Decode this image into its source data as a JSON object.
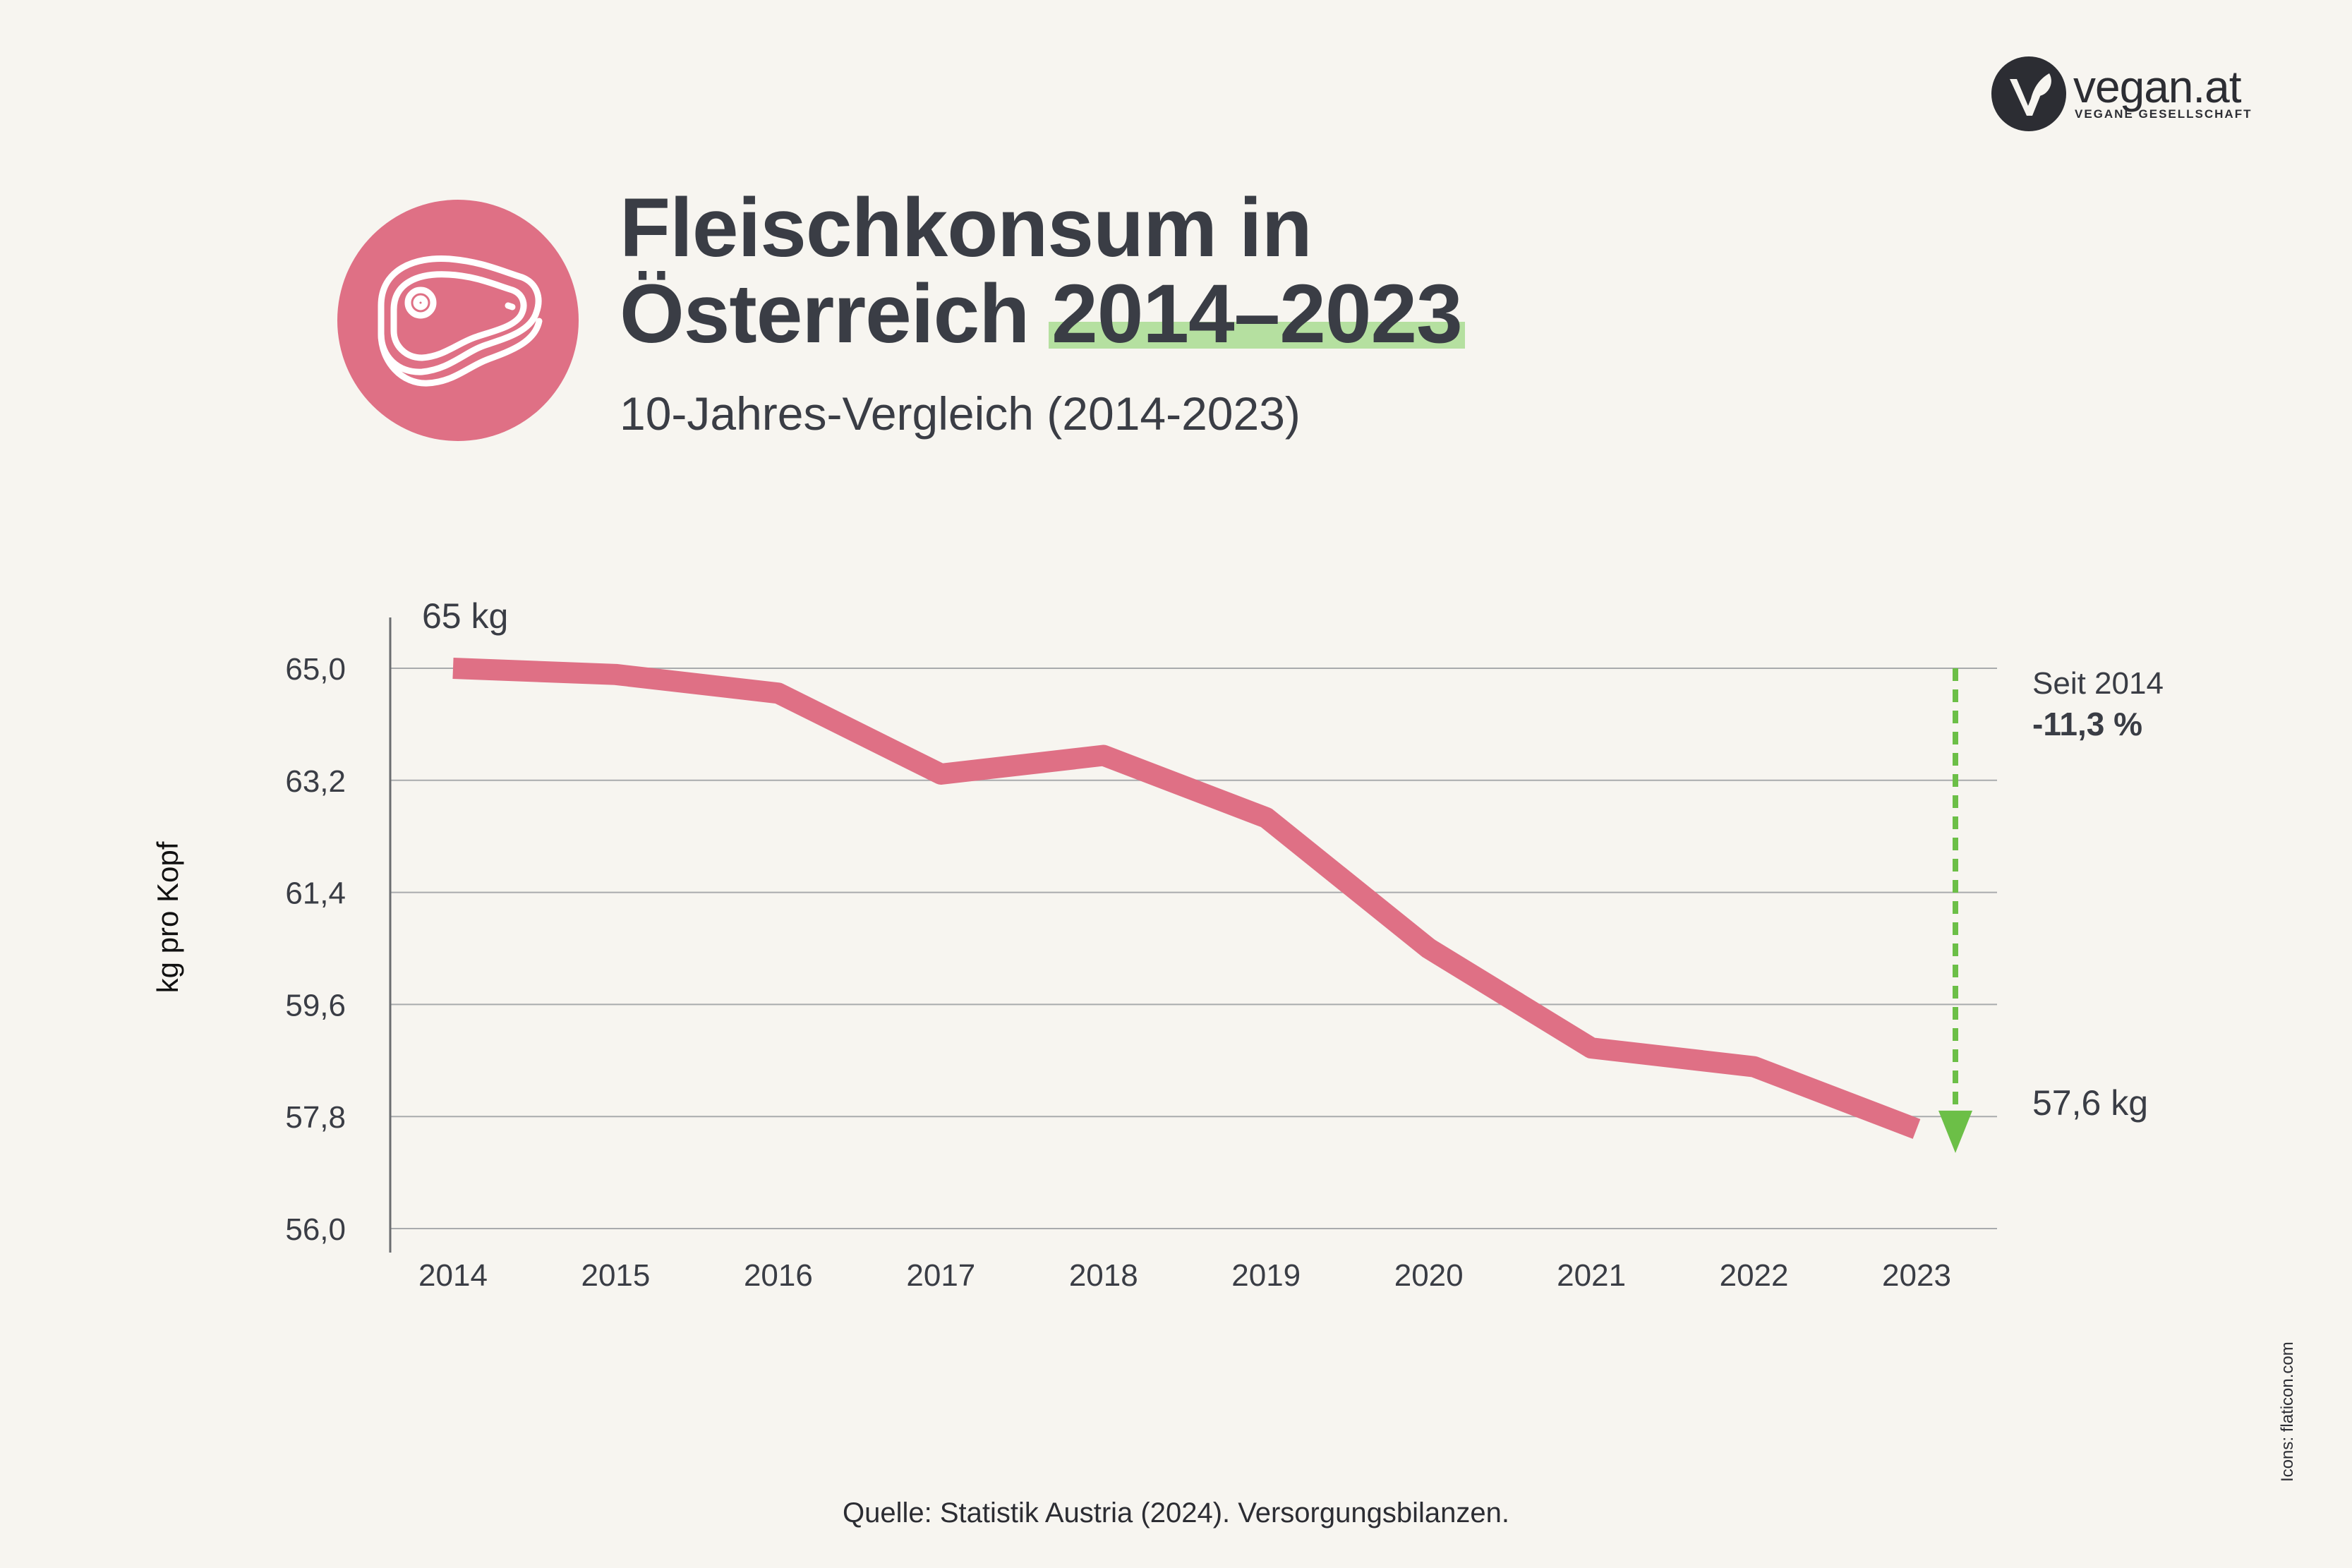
{
  "brand": {
    "name": "vegan.at",
    "tagline": "VEGANE GESELLSCHAFT",
    "icon": "v-leaf-logo-icon"
  },
  "header": {
    "icon": "steak-icon",
    "title_line1": "Fleischkonsum in",
    "title_line2_prefix": "Österreich ",
    "title_line2_highlight": "2014–2023",
    "subtitle": "10-Jahres-Vergleich (2014-2023)"
  },
  "colors": {
    "background": "#f7f5f0",
    "line": "#df7085",
    "accent_green": "#6cbf47",
    "highlight": "#b5e0a0",
    "text": "#3a3d45"
  },
  "chart_data": {
    "type": "line",
    "title": "",
    "xlabel": "",
    "ylabel": "kg pro Kopf",
    "categories": [
      "2014",
      "2015",
      "2016",
      "2017",
      "2018",
      "2019",
      "2020",
      "2021",
      "2022",
      "2023"
    ],
    "series": [
      {
        "values": [
          65.0,
          64.9,
          64.6,
          63.3,
          63.6,
          62.6,
          60.5,
          58.9,
          58.6,
          57.6
        ]
      }
    ],
    "yticks": [
      "65,0",
      "63,2",
      "61,4",
      "59,6",
      "57,8",
      "56,0"
    ],
    "ylim": [
      56.0,
      65.0
    ],
    "grid": true,
    "annotations": {
      "start_label": "65 kg",
      "end_label": "57,6 kg",
      "change_label": "Seit 2014",
      "change_value": "-11,3 %"
    }
  },
  "footer": {
    "source": "Quelle: Statistik Austria (2024). Versorgungsbilanzen.",
    "credits": "Icons: flaticon.com"
  }
}
